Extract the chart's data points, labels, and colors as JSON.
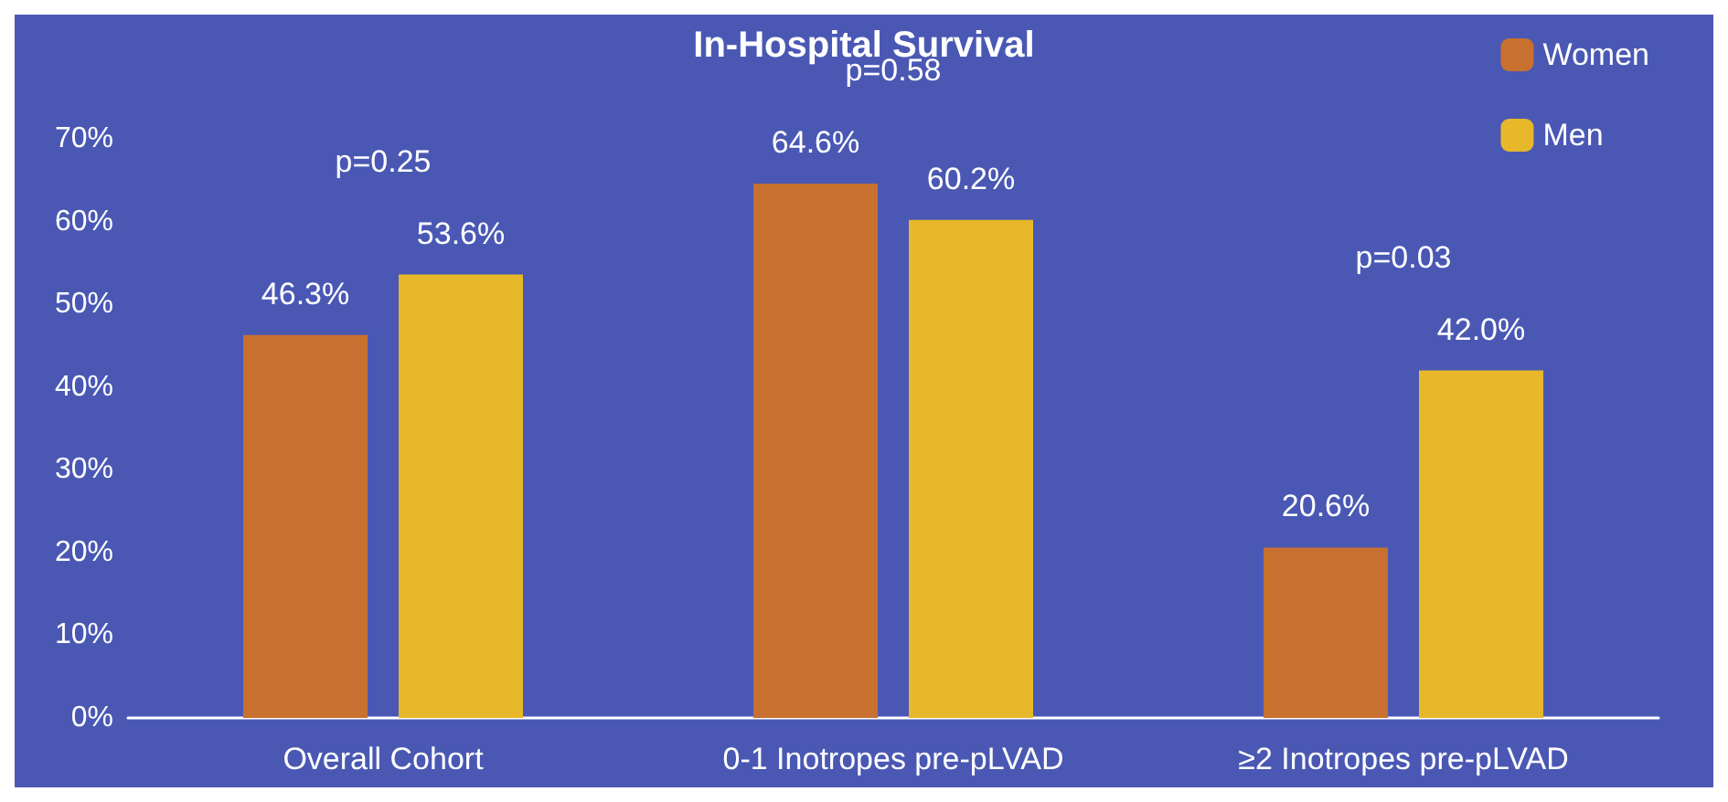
{
  "chart_data": {
    "type": "bar",
    "title": "In-Hospital Survival",
    "categories": [
      "Overall Cohort",
      "0-1 Inotropes pre-pLVAD",
      "≥2 Inotropes pre-pLVAD"
    ],
    "series": [
      {
        "name": "Women",
        "color": "#c8702f",
        "values": [
          46.3,
          64.6,
          20.6
        ],
        "value_labels": [
          "46.3%",
          "64.6%",
          "20.6%"
        ]
      },
      {
        "name": "Men",
        "color": "#e6b82a",
        "values": [
          53.6,
          60.2,
          42.0
        ],
        "value_labels": [
          "53.6%",
          "60.2%",
          "42.0%"
        ]
      }
    ],
    "ylim": [
      0,
      70
    ],
    "yticks": [
      {
        "value": 0,
        "label": "0%"
      },
      {
        "value": 10,
        "label": "10%"
      },
      {
        "value": 20,
        "label": "20%"
      },
      {
        "value": 30,
        "label": "30%"
      },
      {
        "value": 40,
        "label": "40%"
      },
      {
        "value": 50,
        "label": "50%"
      },
      {
        "value": 60,
        "label": "60%"
      },
      {
        "value": 70,
        "label": "70%"
      }
    ],
    "annotations": [
      "p=0.25",
      "p=0.58",
      "p=0.03"
    ],
    "legend": "top right",
    "grid": false
  }
}
